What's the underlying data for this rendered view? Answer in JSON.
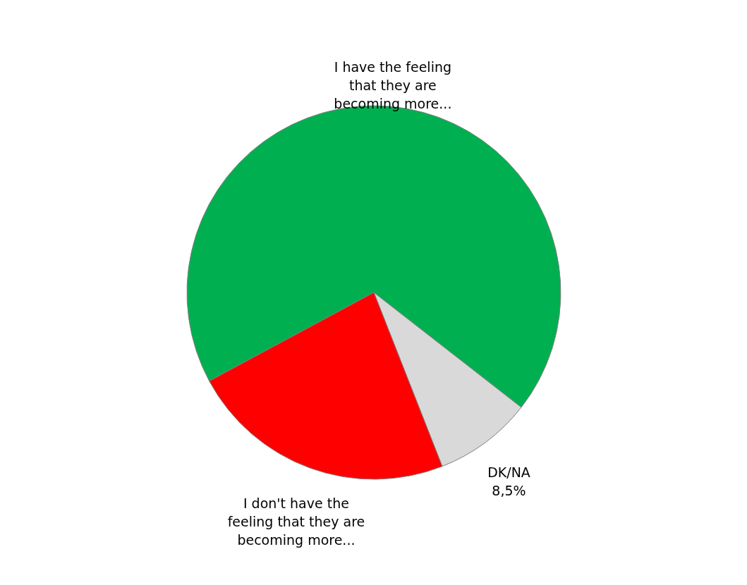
{
  "chart_data": {
    "type": "pie",
    "categories": [
      "I have the feeling that they are becoming more...",
      "DK/NA",
      "I don't have the feeling that they are becoming more..."
    ],
    "values": [
      68.4,
      8.5,
      23.1
    ],
    "colors": [
      "#00b050",
      "#d9d9d9",
      "#ff0000"
    ],
    "value_labels": [
      null,
      "8,5%",
      null
    ]
  }
}
